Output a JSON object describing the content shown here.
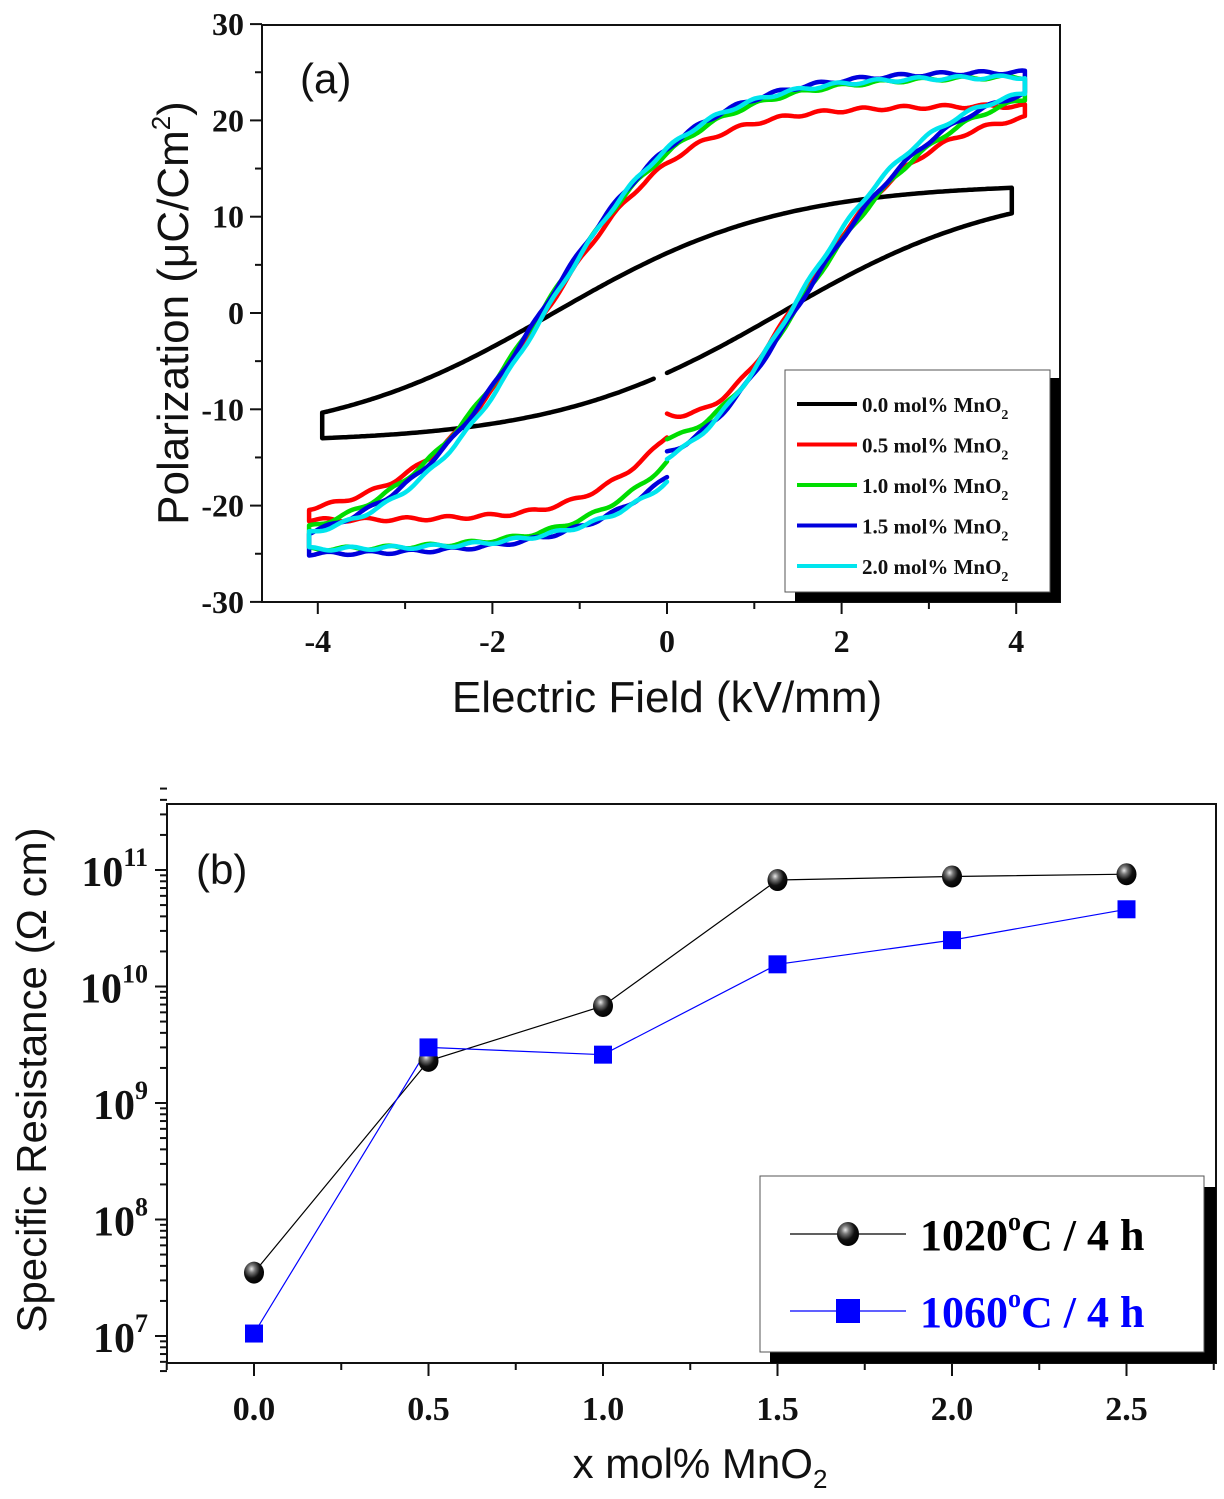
{
  "chart_data": [
    {
      "type": "line",
      "panel_label": "(a)",
      "title": "",
      "xlabel": "Electric Field (kV/mm)",
      "ylabel": "Polarization (μC/Cm²)",
      "ylabel_main": "Polarization (μC/Cm",
      "ylabel_sup": "2",
      "ylabel_end": ")",
      "xlim": [
        -4.5,
        4.5
      ],
      "ylim": [
        -30,
        30
      ],
      "xticks": [
        -4,
        -2,
        0,
        2,
        4
      ],
      "xtick_labels": [
        "-4",
        "-2",
        "0",
        "2",
        "4"
      ],
      "yticks": [
        -30,
        -20,
        -10,
        0,
        10,
        20,
        30
      ],
      "ytick_labels": [
        "-30",
        "-20",
        "-10",
        "0",
        "10",
        "20",
        "30"
      ],
      "grid": false,
      "legend_position": "bottom-right",
      "series": [
        {
          "name": "0.0 mol% MnO2",
          "label_main": "0.0 mol% MnO",
          "label_sub": "2",
          "color": "#000000",
          "Emax": 3.95,
          "Pmax": 13.0,
          "Pmin": -13.0,
          "Ec": 1.3,
          "Pr": 6.0,
          "gap_branch": "lower",
          "gap_start_P": -7.0,
          "gap_end_P": -6.0
        },
        {
          "name": "0.5 mol% MnO2",
          "label_main": "0.5 mol% MnO",
          "label_sub": "2",
          "color": "#ff0000",
          "Emax": 4.1,
          "Pmax": 21.5,
          "Pmin": -21.5,
          "Ec": 1.4,
          "Pr": 15.5,
          "start_P_at_zero": -10.5,
          "end_P_at_zero": -12.8
        },
        {
          "name": "1.0 mol% MnO2",
          "label_main": "1.0 mol% MnO",
          "label_sub": "2",
          "color": "#00dd00",
          "Emax": 4.1,
          "Pmax": 24.5,
          "Pmin": -24.5,
          "Ec": 1.45,
          "Pr": 16.5,
          "start_P_at_zero": -13.0,
          "end_P_at_zero": -15.5
        },
        {
          "name": "1.5 mol% MnO2",
          "label_main": "1.5 mol% MnO",
          "label_sub": "2",
          "color": "#0000dd",
          "Emax": 4.1,
          "Pmax": 25.0,
          "Pmin": -25.0,
          "Ec": 1.45,
          "Pr": 17.0,
          "start_P_at_zero": -14.5,
          "end_P_at_zero": -17.0
        },
        {
          "name": "2.0 mol% MnO2",
          "label_main": "2.0 mol% MnO",
          "label_sub": "2",
          "color": "#00e5ee",
          "Emax": 4.1,
          "Pmax": 24.5,
          "Pmin": -24.5,
          "Ec": 1.4,
          "Pr": 17.0,
          "start_P_at_zero": -15.0,
          "end_P_at_zero": -17.5
        }
      ]
    },
    {
      "type": "scatter",
      "panel_label": "(b)",
      "title": "",
      "xlabel": "x mol% MnO2",
      "xlabel_main": "x mol% MnO",
      "xlabel_sub": "2",
      "ylabel": "Specific Resistance (Ω cm)",
      "yscale": "log",
      "xlim": [
        -0.25,
        2.75
      ],
      "ylim": [
        5000000.0,
        500000000000.0
      ],
      "xticks": [
        0.0,
        0.5,
        1.0,
        1.5,
        2.0,
        2.5
      ],
      "xtick_labels": [
        "0.0",
        "0.5",
        "1.0",
        "1.5",
        "2.0",
        "2.5"
      ],
      "yticks": [
        10000000.0,
        100000000.0,
        1000000000.0,
        10000000000.0,
        100000000000.0
      ],
      "ytick_labels": [
        {
          "base": "10",
          "exp": "7"
        },
        {
          "base": "10",
          "exp": "8"
        },
        {
          "base": "10",
          "exp": "9"
        },
        {
          "base": "10",
          "exp": "10"
        },
        {
          "base": "10",
          "exp": "11"
        }
      ],
      "grid": false,
      "legend_position": "bottom-right",
      "x": [
        0.0,
        0.5,
        1.0,
        1.5,
        2.0,
        2.5
      ],
      "series": [
        {
          "name": "1020°C / 4 h",
          "label_main": "1020",
          "label_sup": "o",
          "label_end": "C / 4 h",
          "color": "#000000",
          "marker": "sphere",
          "values": [
            35000000.0,
            2300000000.0,
            6800000000.0,
            82000000000.0,
            88000000000.0,
            92000000000.0
          ]
        },
        {
          "name": "1060°C / 4 h",
          "label_main": "1060",
          "label_sup": "o",
          "label_end": "C / 4 h",
          "color": "#0000ff",
          "marker": "square",
          "values": [
            10500000.0,
            3000000000.0,
            2600000000.0,
            15500000000.0,
            25000000000.0,
            46000000000.0
          ]
        }
      ]
    }
  ]
}
